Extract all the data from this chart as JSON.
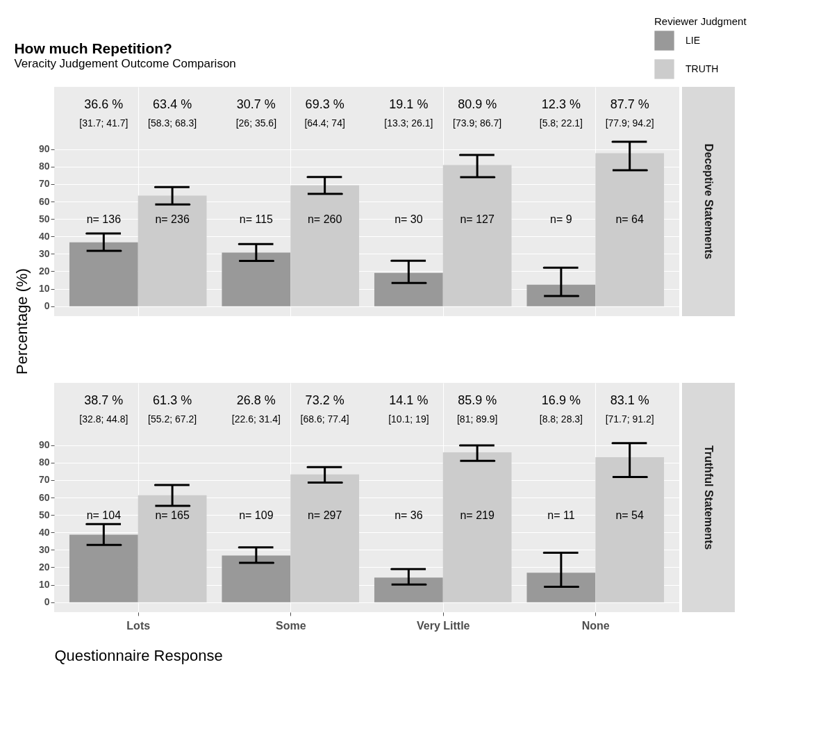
{
  "chart_data": [
    {
      "type": "bar",
      "title": "How much Repetition?",
      "subtitle": "Veracity Judgement Outcome Comparison",
      "ylabel": "Percentage (%)",
      "y2label": "Deceptive Statements",
      "legend_title": "Reviewer Judgment",
      "legend": "top right",
      "grid": true,
      "tick_labels": "y",
      "ylim": [
        -5.7,
        125.7
      ],
      "yticks": [
        0,
        10,
        20,
        30,
        40,
        50,
        60,
        70,
        80,
        90
      ],
      "series": [
        {
          "name": "LIE",
          "color": "#999999",
          "values": [
            36.6,
            30.7,
            19.1,
            12.3
          ],
          "errors": [
            [
              31.7,
              41.7
            ],
            [
              26,
              35.6
            ],
            [
              13.3,
              26.1
            ],
            [
              5.8,
              22.1
            ]
          ]
        },
        {
          "name": "TRUTH",
          "color": "#cccccc",
          "values": [
            63.4,
            69.3,
            80.9,
            87.7
          ],
          "errors": [
            [
              58.3,
              68.3
            ],
            [
              64.4,
              74
            ],
            [
              73.9,
              86.7
            ],
            [
              77.9,
              94.2
            ]
          ]
        }
      ],
      "annotations": [
        "36.6 %",
        "63.4 %",
        "30.7 %",
        "69.3 %",
        "19.1 %",
        "80.9 %",
        "12.3 %",
        "87.7 %",
        "[31.7; 41.7]",
        "[58.3; 68.3]",
        "[26; 35.6]",
        "[64.4; 74]",
        "[13.3; 26.1]",
        "[73.9; 86.7]",
        "[5.8; 22.1]",
        "[77.9; 94.2]",
        "n= 136",
        "n= 236",
        "n= 115",
        "n= 260",
        "n= 30",
        "n= 127",
        "n= 9",
        "n= 64"
      ]
    },
    {
      "type": "bar",
      "xlabel": "Questionnaire Response",
      "y2label": "Truthful Statements",
      "grid": true,
      "categories": [
        "Lots",
        "Some",
        "Very Little",
        "None"
      ],
      "ylim": [
        -5.7,
        125.7
      ],
      "yticks": [
        0,
        10,
        20,
        30,
        40,
        50,
        60,
        70,
        80,
        90
      ],
      "series": [
        {
          "name": "LIE",
          "color": "#999999",
          "values": [
            38.7,
            26.8,
            14.1,
            16.9
          ],
          "errors": [
            [
              32.8,
              44.8
            ],
            [
              22.6,
              31.4
            ],
            [
              10.1,
              19
            ],
            [
              8.8,
              28.3
            ]
          ]
        },
        {
          "name": "TRUTH",
          "color": "#cccccc",
          "values": [
            61.3,
            73.2,
            85.9,
            83.1
          ],
          "errors": [
            [
              55.2,
              67.2
            ],
            [
              68.6,
              77.4
            ],
            [
              81,
              89.9
            ],
            [
              71.7,
              91.2
            ]
          ]
        }
      ],
      "annotations": [
        "38.7 %",
        "61.3 %",
        "26.8 %",
        "73.2 %",
        "14.1 %",
        "85.9 %",
        "16.9 %",
        "83.1 %",
        "[32.8; 44.8]",
        "[55.2; 67.2]",
        "[22.6; 31.4]",
        "[68.6; 77.4]",
        "[10.1; 19]",
        "[81; 89.9]",
        "[8.8; 28.3]",
        "[71.7; 91.2]",
        "n= 104",
        "n= 165",
        "n= 109",
        "n= 297",
        "n= 36",
        "n= 219",
        "n= 11",
        "n= 54"
      ]
    }
  ]
}
